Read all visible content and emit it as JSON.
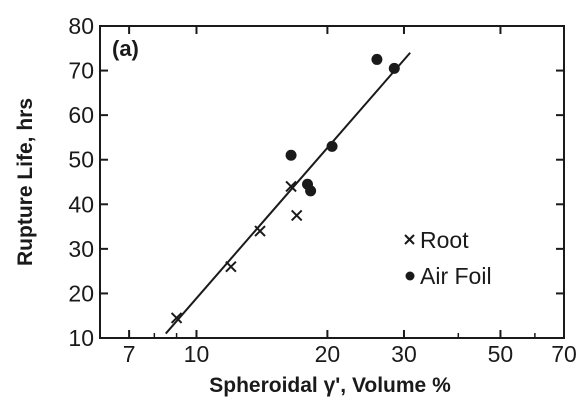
{
  "chart_data": {
    "type": "scatter",
    "title": "",
    "panel_label": "(a)",
    "xlabel": "Spheroidal γ', Volume %",
    "ylabel": "Rupture Life, hrs",
    "x_scale": "log",
    "xlim": [
      6,
      70
    ],
    "ylim": [
      10,
      80
    ],
    "x_ticks": [
      7,
      10,
      20,
      30,
      50,
      70
    ],
    "y_ticks": [
      10,
      20,
      30,
      40,
      50,
      60,
      70,
      80
    ],
    "grid": false,
    "legend_position": "bottom-right",
    "series": [
      {
        "name": "Root",
        "marker": "x",
        "x": [
          9,
          12,
          14,
          17,
          16.5
        ],
        "y": [
          14.5,
          26,
          34,
          37.5,
          44
        ]
      },
      {
        "name": "Air Foil",
        "marker": "circle",
        "x": [
          16.5,
          18,
          18.3,
          20.5,
          26,
          28.5
        ],
        "y": [
          51,
          44.5,
          43,
          53,
          72.5,
          70.5
        ]
      }
    ],
    "fit_line": {
      "x": [
        8.5,
        31
      ],
      "y": [
        11,
        74
      ]
    },
    "colors": {
      "ink": "#1a1a1a",
      "background": "#ffffff"
    }
  }
}
